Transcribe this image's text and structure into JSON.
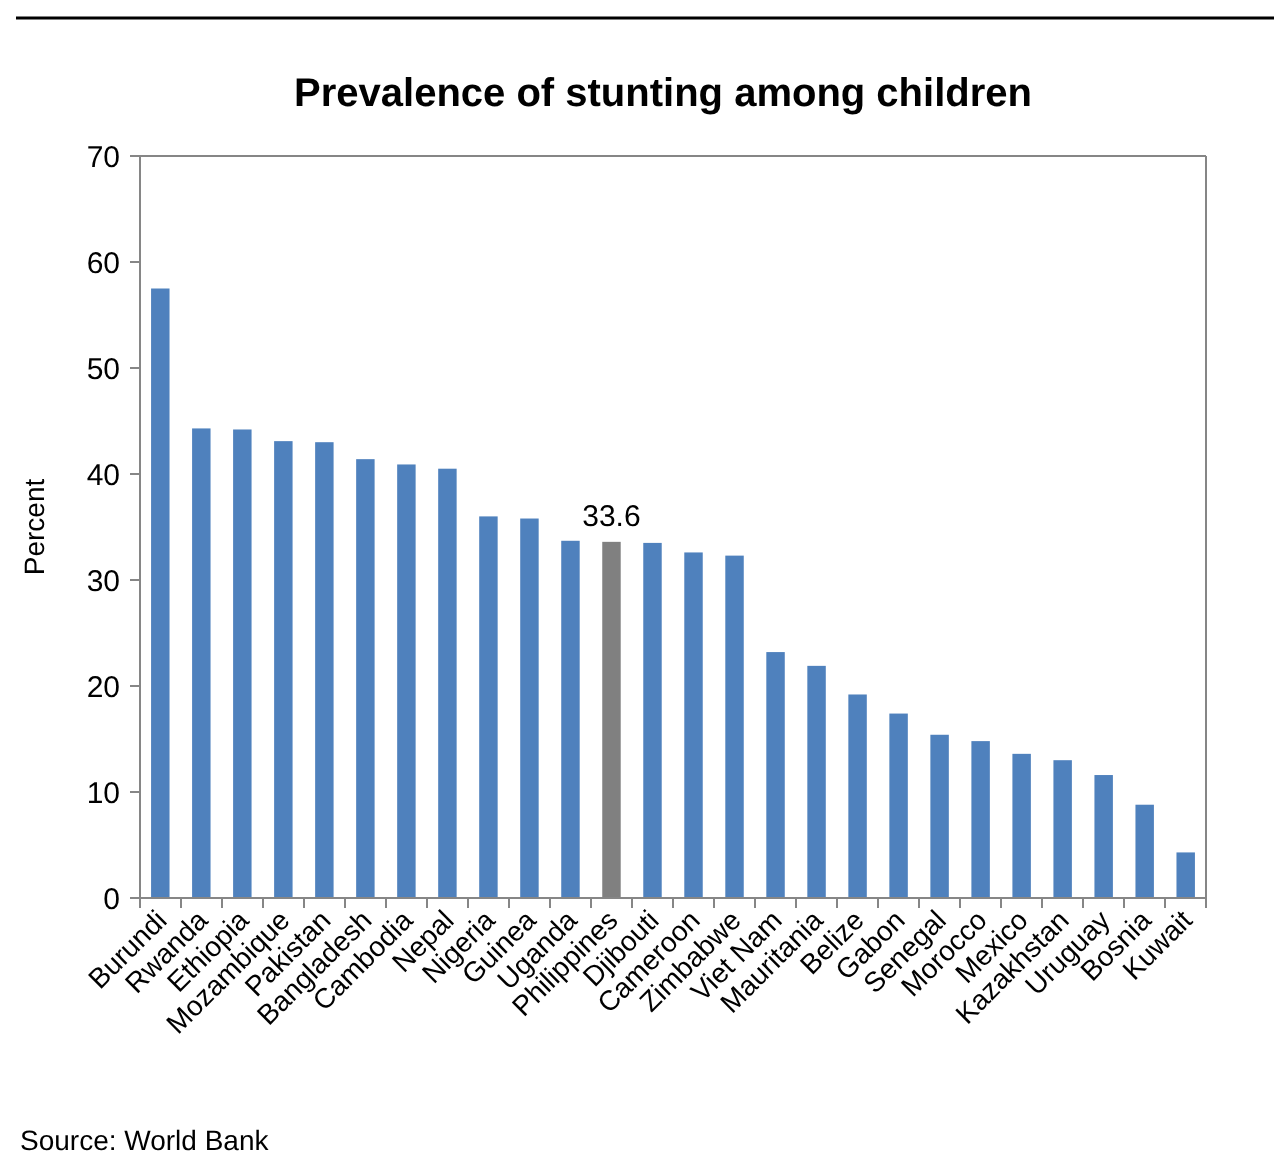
{
  "chart_data": {
    "type": "bar",
    "title": "Prevalence of stunting among children",
    "ylabel": "Percent",
    "categories": [
      "Burundi",
      "Rwanda",
      "Ethiopia",
      "Mozambique",
      "Pakistan",
      "Bangladesh",
      "Cambodia",
      "Nepal",
      "Nigeria",
      "Guinea",
      "Uganda",
      "Philippines",
      "Djibouti",
      "Cameroon",
      "Zimbabwe",
      "Viet Nam",
      "Mauritania",
      "Belize",
      "Gabon",
      "Senegal",
      "Morocco",
      "Mexico",
      "Kazakhstan",
      "Uruguay",
      "Bosnia",
      "Kuwait"
    ],
    "values": [
      57.5,
      44.3,
      44.2,
      43.1,
      43.0,
      41.4,
      40.9,
      40.5,
      36.0,
      35.8,
      33.7,
      33.6,
      33.5,
      32.6,
      32.3,
      23.2,
      21.9,
      19.2,
      17.4,
      15.4,
      14.8,
      13.6,
      13.0,
      11.6,
      8.8,
      4.3
    ],
    "colors": [
      "#4f81bd",
      "#4f81bd",
      "#4f81bd",
      "#4f81bd",
      "#4f81bd",
      "#4f81bd",
      "#4f81bd",
      "#4f81bd",
      "#4f81bd",
      "#4f81bd",
      "#4f81bd",
      "#808080",
      "#4f81bd",
      "#4f81bd",
      "#4f81bd",
      "#4f81bd",
      "#4f81bd",
      "#4f81bd",
      "#4f81bd",
      "#4f81bd",
      "#4f81bd",
      "#4f81bd",
      "#4f81bd",
      "#4f81bd",
      "#4f81bd",
      "#4f81bd"
    ],
    "value_labels": [
      null,
      null,
      null,
      null,
      null,
      null,
      null,
      null,
      null,
      null,
      null,
      "33.6",
      null,
      null,
      null,
      null,
      null,
      null,
      null,
      null,
      null,
      null,
      null,
      null,
      null,
      null
    ],
    "ylim": [
      0,
      70
    ],
    "yticks": [
      0,
      10,
      20,
      30,
      40,
      50,
      60,
      70
    ],
    "annotations": [
      "Source: World Bank"
    ]
  }
}
